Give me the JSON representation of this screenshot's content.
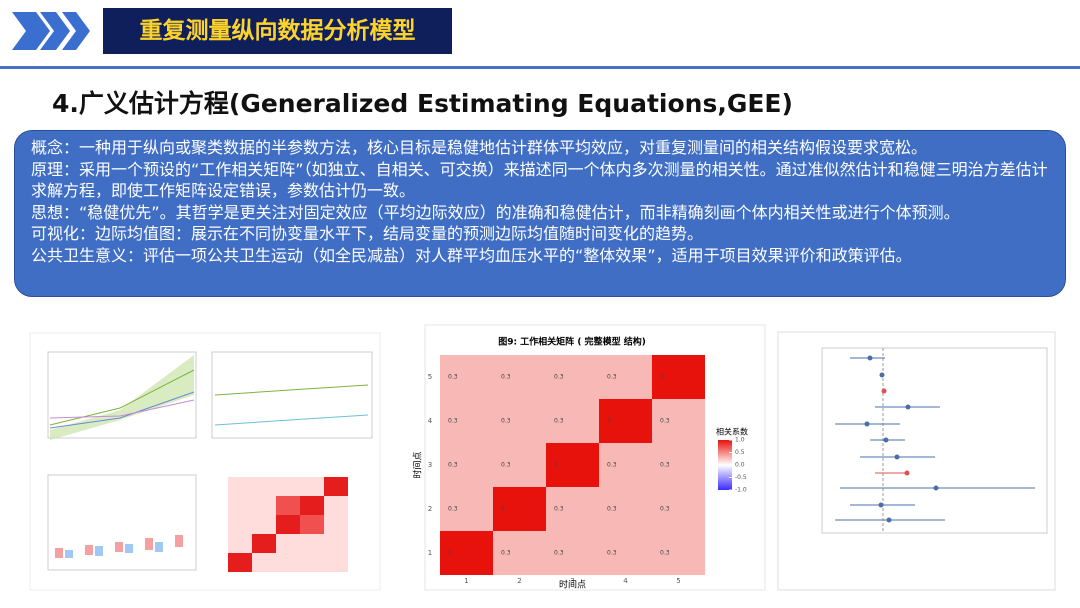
{
  "header": {
    "title": "重复测量纵向数据分析模型"
  },
  "section_title": "4.广义估计方程(Generalized Estimating Equations,GEE)",
  "concept": {
    "paragraphs": [
      "概念：一种用于纵向或聚类数据的半参数方法，核心目标是稳健地估计群体平均效应，对重复测量间的相关结构假设要求宽松。",
      "原理：采用一个预设的“工作相关矩阵”（如独立、自相关、可交换）来描述同一个体内多次测量的相关性。通过准似然估计和稳健三明治方差估计求解方程，即使工作矩阵设定错误，参数估计仍一致。",
      "思想：“稳健优先”。其哲学是更关注对固定效应（平均边际效应）的准确和稳健估计，而非精确刻画个体内相关性或进行个体预测。",
      "可视化：边际均值图：展示在不同协变量水平下，结局变量的预测边际均值随时间变化的趋势。",
      "公共卫生意义：评估一项公共卫生运动（如全民减盐）对人群平均血压水平的“整体效果”，适用于项目效果评价和政策评估。"
    ]
  },
  "figure": {
    "title": "图9: 工作相关矩阵 ( 完整模型 结构)",
    "x_label": "时间点",
    "y_label": "时间点",
    "legend_title": "相关系数",
    "x": [
      1,
      2,
      3,
      4,
      5
    ],
    "y": [
      1,
      2,
      3,
      4,
      5
    ],
    "values": [
      [
        1,
        0.3,
        0.3,
        0.3,
        0.3
      ],
      [
        0.3,
        1,
        0.3,
        0.3,
        0.3
      ],
      [
        0.3,
        0.3,
        1,
        0.3,
        0.3
      ],
      [
        0.3,
        0.3,
        0.3,
        1,
        0.3
      ],
      [
        0.3,
        0.3,
        0.3,
        0.3,
        1
      ]
    ],
    "colorbar_ticks": [
      {
        "value": 1,
        "label": "1.0"
      },
      0.5,
      {
        "value": 0,
        "label": "0.0"
      },
      -0.5,
      {
        "value": -1,
        "label": "-1.0"
      }
    ],
    "colorbar_lim": [
      -1,
      1
    ]
  }
}
